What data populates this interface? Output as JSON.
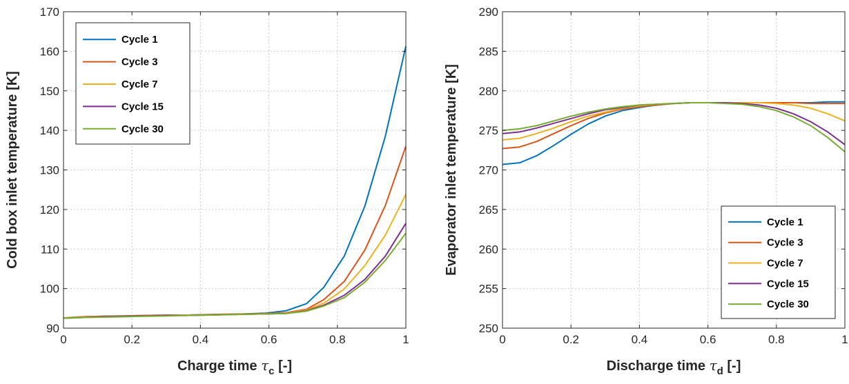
{
  "chart_data": [
    {
      "type": "line",
      "xlabel": "Charge time",
      "xlabel_symbol": "τ",
      "xlabel_sub": "c",
      "xlabel_unit": "[-]",
      "ylabel": "Cold box inlet temperature [K]",
      "xlim": [
        0,
        1
      ],
      "ylim": [
        90,
        170
      ],
      "xticks": [
        "0",
        "0.2",
        "0.4",
        "0.6",
        "0.8",
        "1"
      ],
      "yticks": [
        "90",
        "100",
        "110",
        "120",
        "130",
        "140",
        "150",
        "160",
        "170"
      ],
      "grid": true,
      "legend_position": "top-left",
      "x": [
        0,
        0.06,
        0.12,
        0.18,
        0.24,
        0.3,
        0.35,
        0.41,
        0.47,
        0.53,
        0.59,
        0.65,
        0.71,
        0.76,
        0.82,
        0.88,
        0.94,
        1.0
      ],
      "series": [
        {
          "name": "Cycle 1",
          "color": "#0072BD",
          "values": [
            92.6,
            92.9,
            93.0,
            93.1,
            93.2,
            93.3,
            93.3,
            93.4,
            93.5,
            93.6,
            93.8,
            94.4,
            96.2,
            100.3,
            108.2,
            120.8,
            138.5,
            161.3
          ]
        },
        {
          "name": "Cycle 3",
          "color": "#D95319",
          "values": [
            92.6,
            92.9,
            93.0,
            93.1,
            93.2,
            93.3,
            93.3,
            93.4,
            93.5,
            93.6,
            93.7,
            93.9,
            94.8,
            97.2,
            101.8,
            109.7,
            121.0,
            136.0
          ]
        },
        {
          "name": "Cycle 7",
          "color": "#EDB120",
          "values": [
            92.6,
            92.8,
            92.9,
            93.0,
            93.1,
            93.2,
            93.3,
            93.3,
            93.4,
            93.5,
            93.6,
            93.8,
            94.6,
            96.3,
            99.9,
            105.8,
            113.5,
            123.8
          ]
        },
        {
          "name": "Cycle 15",
          "color": "#7E2F8E",
          "values": [
            92.5,
            92.7,
            92.9,
            93.0,
            93.1,
            93.2,
            93.2,
            93.3,
            93.4,
            93.5,
            93.6,
            93.7,
            94.4,
            95.8,
            98.3,
            102.3,
            108.2,
            116.5
          ]
        },
        {
          "name": "Cycle 30",
          "color": "#77AC30",
          "values": [
            92.5,
            92.7,
            92.8,
            92.9,
            93.0,
            93.1,
            93.2,
            93.3,
            93.4,
            93.5,
            93.6,
            93.7,
            94.3,
            95.6,
            97.7,
            101.6,
            107.1,
            114.0
          ]
        }
      ]
    },
    {
      "type": "line",
      "xlabel": "Discharge time",
      "xlabel_symbol": "τ",
      "xlabel_sub": "d",
      "xlabel_unit": "[-]",
      "ylabel": "Evaporator inlet temperature [K]",
      "xlim": [
        0,
        1
      ],
      "ylim": [
        250,
        290
      ],
      "xticks": [
        "0",
        "0.2",
        "0.4",
        "0.6",
        "0.8",
        "1"
      ],
      "yticks": [
        "250",
        "255",
        "260",
        "265",
        "270",
        "275",
        "280",
        "285",
        "290"
      ],
      "grid": true,
      "legend_position": "bottom-right",
      "x": [
        0,
        0.05,
        0.1,
        0.15,
        0.2,
        0.25,
        0.3,
        0.35,
        0.4,
        0.45,
        0.5,
        0.55,
        0.6,
        0.65,
        0.7,
        0.75,
        0.8,
        0.85,
        0.9,
        0.95,
        1.0
      ],
      "series": [
        {
          "name": "Cycle 1",
          "color": "#0072BD",
          "values": [
            270.7,
            270.9,
            271.8,
            273.1,
            274.5,
            275.8,
            276.8,
            277.5,
            277.9,
            278.2,
            278.4,
            278.5,
            278.5,
            278.5,
            278.5,
            278.5,
            278.5,
            278.5,
            278.5,
            278.6,
            278.6
          ]
        },
        {
          "name": "Cycle 3",
          "color": "#D95319",
          "values": [
            272.7,
            272.9,
            273.6,
            274.6,
            275.6,
            276.5,
            277.2,
            277.7,
            278.0,
            278.2,
            278.4,
            278.5,
            278.5,
            278.5,
            278.5,
            278.5,
            278.5,
            278.5,
            278.4,
            278.4,
            278.4
          ]
        },
        {
          "name": "Cycle 7",
          "color": "#EDB120",
          "values": [
            273.8,
            274.0,
            274.6,
            275.3,
            276.1,
            276.8,
            277.3,
            277.8,
            278.1,
            278.3,
            278.4,
            278.5,
            278.5,
            278.5,
            278.5,
            278.5,
            278.4,
            278.2,
            277.8,
            277.1,
            276.2
          ]
        },
        {
          "name": "Cycle 15",
          "color": "#7E2F8E",
          "values": [
            274.6,
            274.8,
            275.3,
            275.9,
            276.5,
            277.1,
            277.6,
            277.9,
            278.2,
            278.3,
            278.4,
            278.5,
            278.5,
            278.5,
            278.4,
            278.2,
            277.8,
            277.1,
            276.1,
            274.8,
            273.2
          ]
        },
        {
          "name": "Cycle 30",
          "color": "#77AC30",
          "values": [
            275.0,
            275.2,
            275.6,
            276.2,
            276.8,
            277.3,
            277.7,
            278.0,
            278.2,
            278.3,
            278.4,
            278.5,
            278.5,
            278.4,
            278.3,
            278.0,
            277.5,
            276.7,
            275.6,
            274.1,
            272.3
          ]
        }
      ]
    }
  ]
}
